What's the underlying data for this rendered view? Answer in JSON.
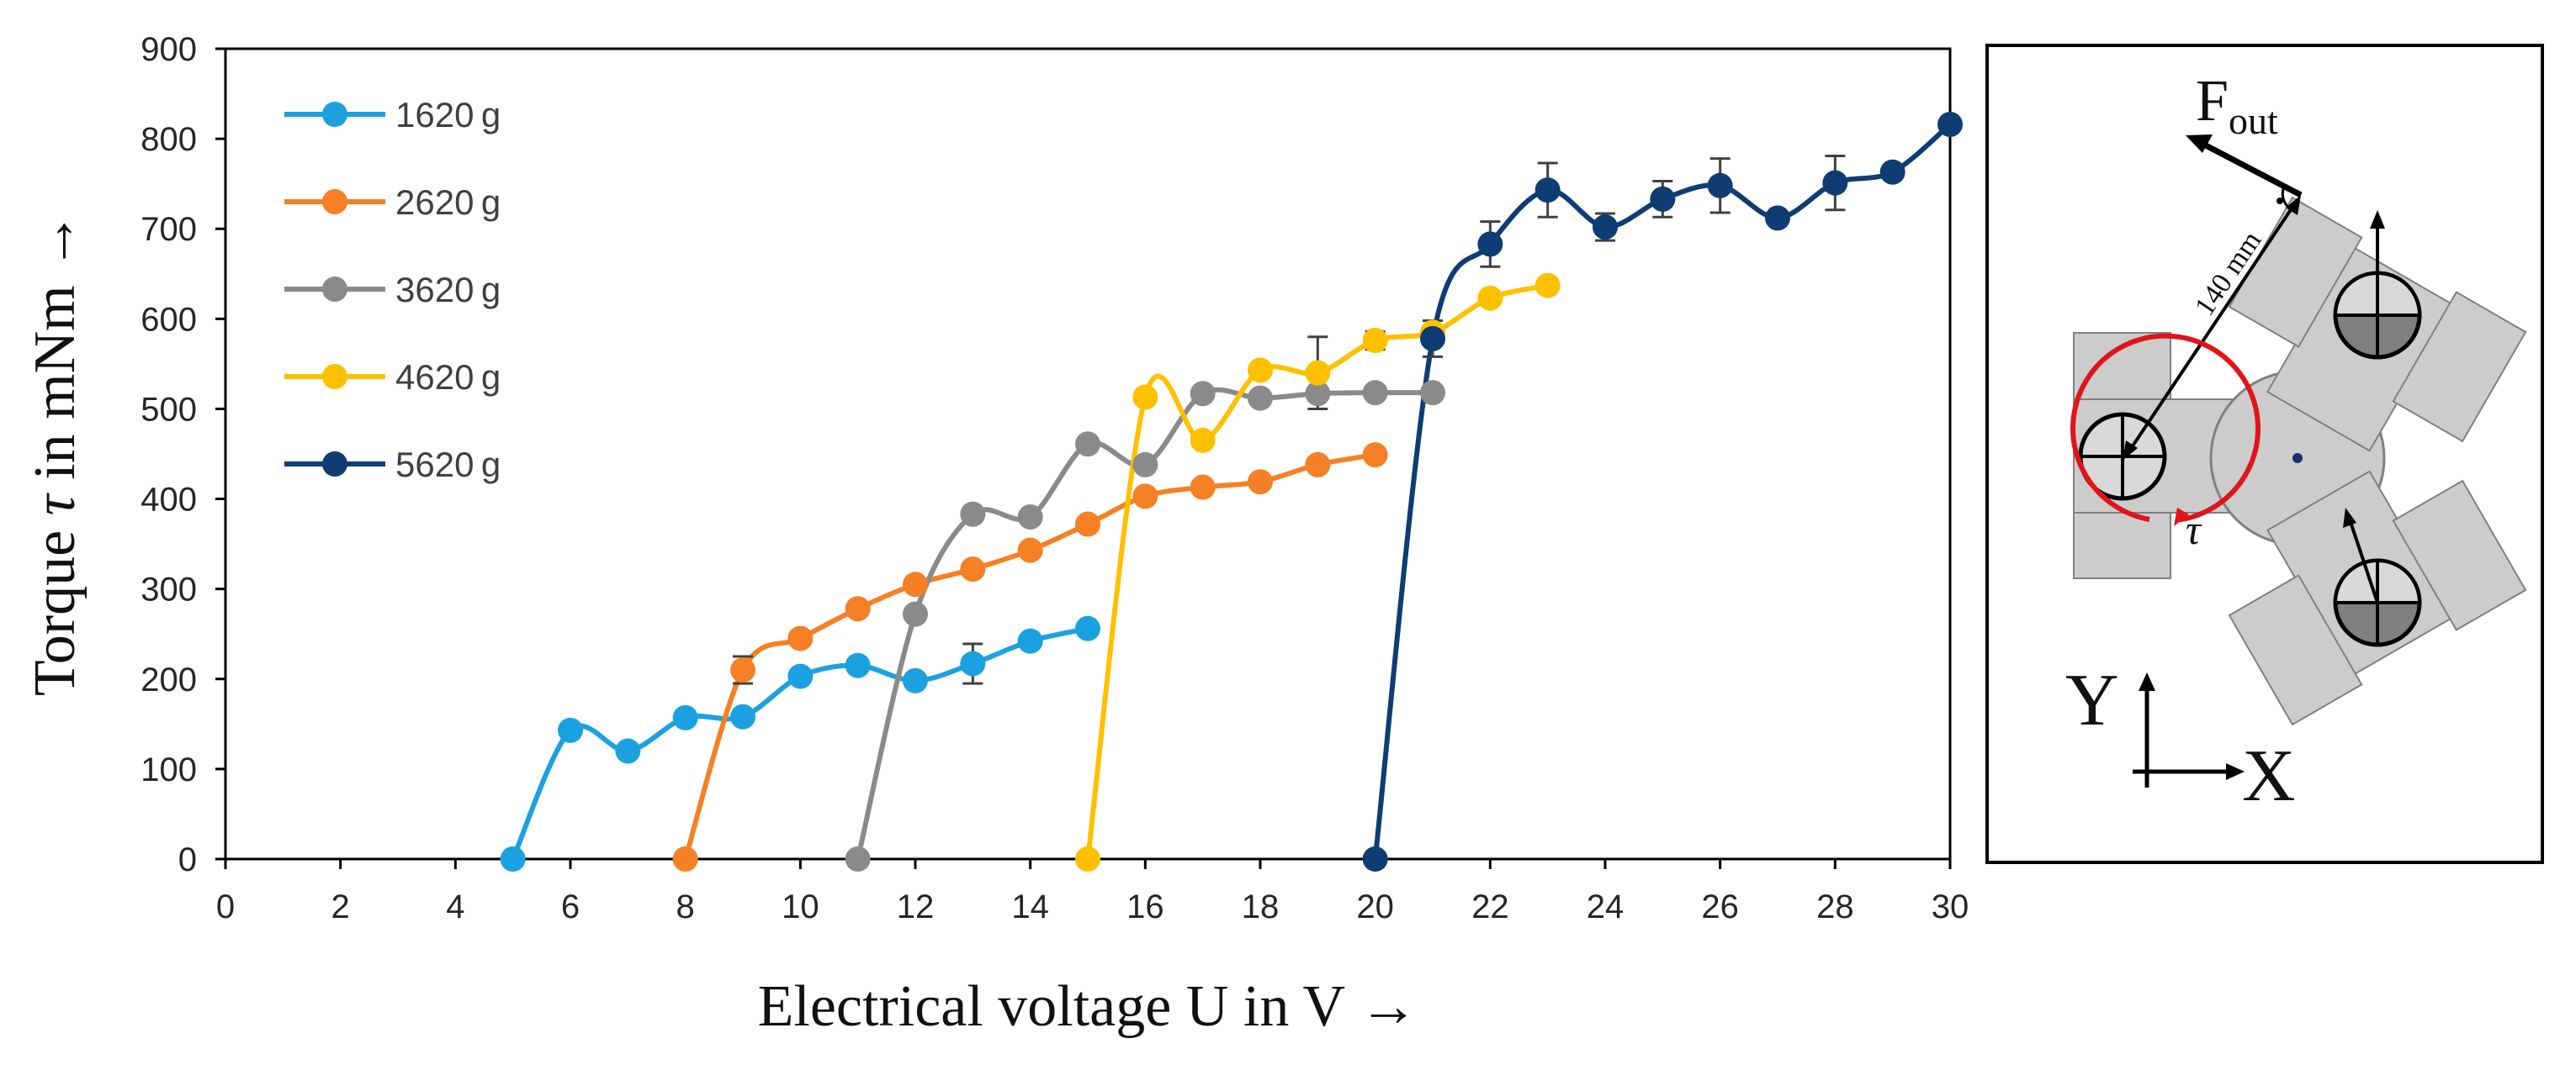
{
  "chart_data": {
    "type": "line",
    "xlabel": "Electrical voltage U in V →",
    "ylabel_prefix": "Torque ",
    "ylabel_symbol": "τ",
    "ylabel_suffix": " in mNm →",
    "xlim": [
      0,
      30
    ],
    "ylim": [
      0,
      900
    ],
    "xticks": [
      "0",
      "2",
      "4",
      "6",
      "8",
      "10",
      "12",
      "14",
      "16",
      "18",
      "20",
      "22",
      "24",
      "26",
      "28",
      "30"
    ],
    "yticks": [
      "0",
      "100",
      "200",
      "300",
      "400",
      "500",
      "600",
      "700",
      "800",
      "900"
    ],
    "legend_position": "top-left",
    "series": [
      {
        "name": "1620 g",
        "color": "#1ca1e0",
        "x": [
          5,
          6,
          7,
          8,
          9,
          10,
          11,
          12,
          13,
          14,
          15
        ],
        "y": [
          0,
          143,
          120,
          157,
          158,
          203,
          215,
          198,
          217,
          242,
          256
        ],
        "err": [
          0,
          0,
          0,
          0,
          0,
          0,
          0,
          0,
          22,
          0,
          0
        ]
      },
      {
        "name": "2620 g",
        "color": "#f58025",
        "x": [
          8,
          9,
          10,
          11,
          12,
          13,
          14,
          15,
          16,
          17,
          18,
          19,
          20
        ],
        "y": [
          0,
          210,
          245,
          278,
          305,
          322,
          343,
          372,
          403,
          413,
          419,
          438,
          449
        ],
        "err": [
          0,
          15,
          0,
          0,
          0,
          0,
          0,
          0,
          0,
          0,
          0,
          0,
          0
        ]
      },
      {
        "name": "3620 g",
        "color": "#8a8a8a",
        "x": [
          11,
          12,
          13,
          14,
          15,
          16,
          17,
          18,
          19,
          20,
          21
        ],
        "y": [
          0,
          272,
          383,
          380,
          461,
          438,
          517,
          512,
          517,
          518,
          518
        ],
        "err": [
          0,
          0,
          0,
          0,
          0,
          0,
          0,
          0,
          0,
          0,
          0
        ]
      },
      {
        "name": "4620 g",
        "color": "#ffc000",
        "x": [
          15,
          16,
          17,
          18,
          19,
          20,
          21,
          22,
          23
        ],
        "y": [
          0,
          513,
          465,
          543,
          540,
          576,
          585,
          623,
          637
        ],
        "err": [
          0,
          0,
          0,
          0,
          40,
          10,
          0,
          0,
          0
        ]
      },
      {
        "name": "5620 g",
        "color": "#0e3c73",
        "x": [
          20,
          21,
          22,
          23,
          24,
          25,
          26,
          27,
          28,
          29,
          30
        ],
        "y": [
          0,
          578,
          683,
          743,
          702,
          733,
          748,
          712,
          751,
          763,
          816
        ],
        "err": [
          0,
          20,
          25,
          30,
          15,
          20,
          30,
          0,
          30,
          0,
          0
        ]
      }
    ]
  },
  "diagram": {
    "force_label_main": "F",
    "force_label_sub": "out",
    "distance_label": "140 mm",
    "torque_symbol": "τ",
    "axis_y_label": "Y",
    "axis_x_label": "X",
    "torque_color": "#e0141a"
  }
}
